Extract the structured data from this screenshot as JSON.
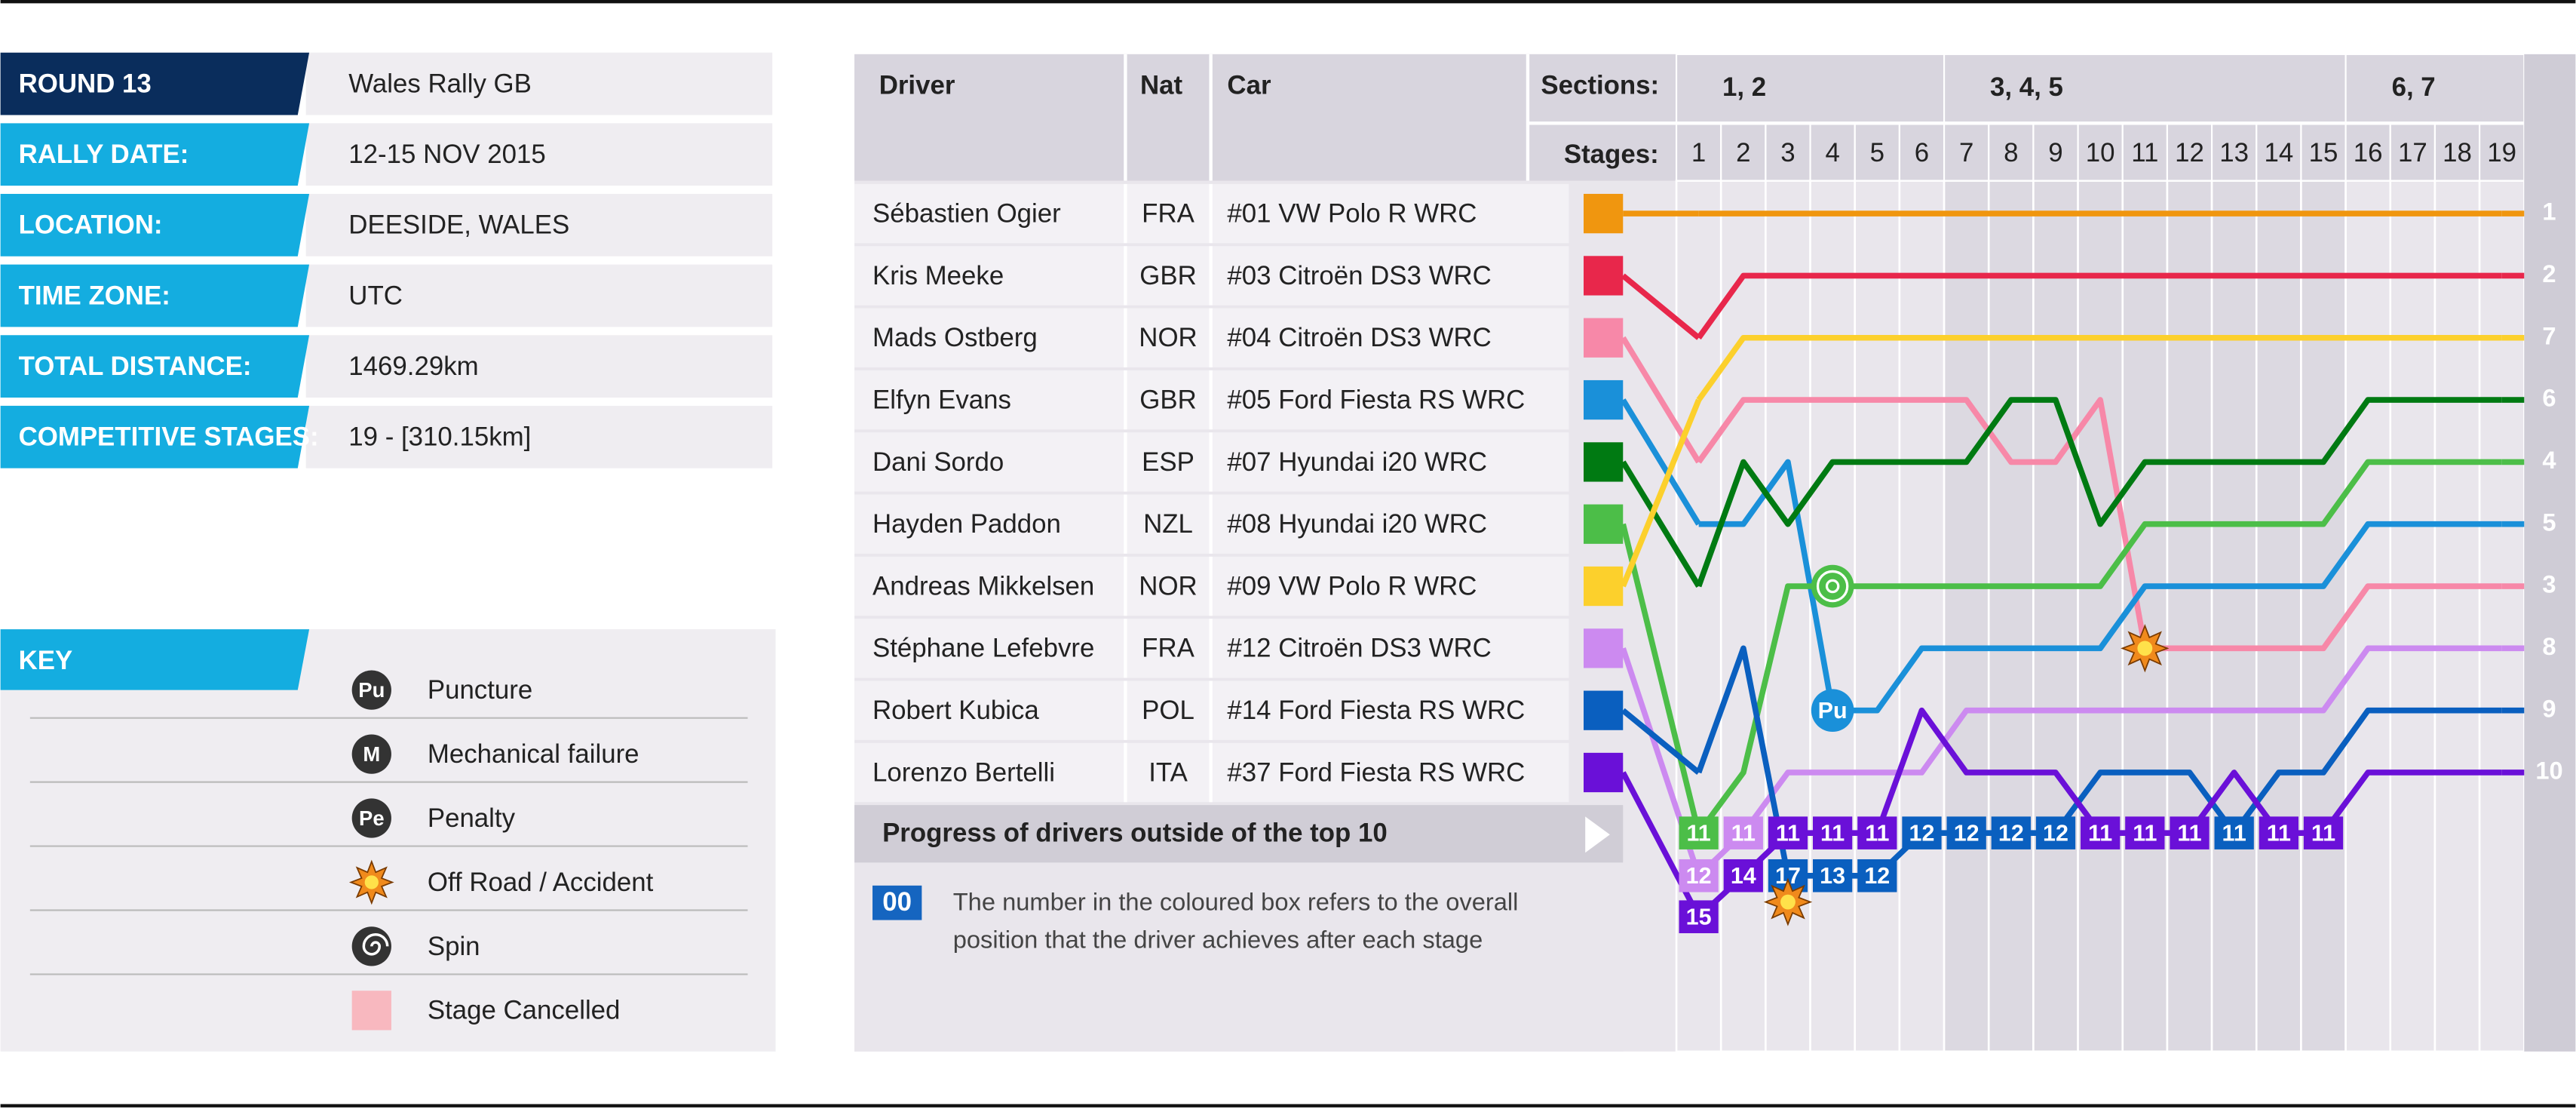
{
  "info": [
    {
      "label": "ROUND 13",
      "value": "Wales Rally GB"
    },
    {
      "label": "RALLY DATE:",
      "value": "12-15 NOV 2015"
    },
    {
      "label": "LOCATION:",
      "value": "DEESIDE, WALES"
    },
    {
      "label": "TIME ZONE:",
      "value": "UTC"
    },
    {
      "label": "TOTAL DISTANCE:",
      "value": "1469.29km"
    },
    {
      "label": "COMPETITIVE STAGES:",
      "value": "19 - [310.15km]"
    }
  ],
  "key": {
    "title": "KEY",
    "items": [
      {
        "icon": "Pu",
        "label": "Puncture"
      },
      {
        "icon": "M",
        "label": "Mechanical failure"
      },
      {
        "icon": "Pe",
        "label": "Penalty"
      },
      {
        "label": "Off Road / Accident"
      },
      {
        "label": "Spin"
      },
      {
        "label": "Stage Cancelled"
      }
    ]
  },
  "table": {
    "headers": [
      "Driver",
      "Nat",
      "Car"
    ],
    "sections_label": "Sections:",
    "stages_label": "Stages:",
    "sections": [
      "1, 2",
      "3, 4, 5",
      "6, 7"
    ]
  },
  "chart_data": {
    "type": "bump",
    "stages": [
      1,
      2,
      3,
      4,
      5,
      6,
      7,
      8,
      9,
      10,
      11,
      12,
      13,
      14,
      15,
      16,
      17,
      18,
      19
    ],
    "series": [
      {
        "name": "Sébastien Ogier",
        "nat": "FRA",
        "car": "#01 VW Polo R WRC",
        "color": "#f0960f",
        "values": [
          1,
          1,
          1,
          1,
          1,
          1,
          1,
          1,
          1,
          1,
          1,
          1,
          1,
          1,
          1,
          1,
          1,
          1,
          1
        ]
      },
      {
        "name": "Kris Meeke",
        "nat": "GBR",
        "car": "#03 Citroën DS3 WRC",
        "color": "#e8274b",
        "values": [
          3,
          2,
          2,
          2,
          2,
          2,
          2,
          2,
          2,
          2,
          2,
          2,
          2,
          2,
          2,
          2,
          2,
          2,
          2
        ]
      },
      {
        "name": "Mads Ostberg",
        "nat": "NOR",
        "car": "#04 Citroën DS3 WRC",
        "color": "#f788a8",
        "values": [
          5,
          4,
          4,
          4,
          4,
          4,
          4,
          5,
          5,
          4,
          8,
          8,
          8,
          8,
          8,
          7,
          7,
          7,
          7
        ],
        "incident": {
          "stage": 11,
          "kind": "Off Road / Accident"
        }
      },
      {
        "name": "Elfyn Evans",
        "nat": "GBR",
        "car": "#05 Ford Fiesta RS WRC",
        "color": "#1a90d9",
        "values": [
          6,
          6,
          5,
          9,
          9,
          8,
          8,
          8,
          8,
          8,
          7,
          7,
          7,
          7,
          7,
          6,
          6,
          6,
          6
        ],
        "incident": {
          "stage": 4,
          "kind": "Puncture"
        }
      },
      {
        "name": "Dani Sordo",
        "nat": "ESP",
        "car": "#07 Hyundai i20 WRC",
        "color": "#007a12",
        "values": [
          7,
          5,
          6,
          5,
          5,
          5,
          5,
          4,
          4,
          6,
          5,
          5,
          5,
          5,
          5,
          4,
          4,
          4,
          4
        ]
      },
      {
        "name": "Hayden Paddon",
        "nat": "NZL",
        "car": "#08 Hyundai i20 WRC",
        "color": "#4cbe48",
        "values": [
          11,
          10,
          7,
          7,
          7,
          7,
          7,
          7,
          7,
          7,
          6,
          6,
          6,
          6,
          6,
          5,
          5,
          5,
          5
        ],
        "incident": {
          "stage": 4,
          "kind": "Spin"
        }
      },
      {
        "name": "Andreas Mikkelsen",
        "nat": "NOR",
        "car": "#09 VW Polo R WRC",
        "color": "#fcd02c",
        "values": [
          4,
          3,
          3,
          3,
          3,
          3,
          3,
          3,
          3,
          3,
          3,
          3,
          3,
          3,
          3,
          3,
          3,
          3,
          3
        ]
      },
      {
        "name": "Stéphane Lefebvre",
        "nat": "FRA",
        "car": "#12 Citroën DS3 WRC",
        "color": "#cc8af0",
        "values": [
          12,
          11,
          10,
          10,
          10,
          10,
          9,
          9,
          9,
          9,
          9,
          9,
          9,
          9,
          9,
          8,
          8,
          8,
          8
        ]
      },
      {
        "name": "Robert Kubica",
        "nat": "POL",
        "car": "#14 Ford Fiesta RS WRC",
        "color": "#0a5fbf",
        "values": [
          10,
          8,
          17,
          13,
          12,
          12,
          12,
          12,
          12,
          10,
          10,
          10,
          11,
          10,
          10,
          9,
          9,
          9,
          9
        ],
        "incident": {
          "stage": 3,
          "kind": "Off Road / Accident"
        }
      },
      {
        "name": "Lorenzo Bertelli",
        "nat": "ITA",
        "car": "#37 Ford Fiesta RS WRC",
        "color": "#6a10d8",
        "values": [
          15,
          14,
          11,
          11,
          11,
          9,
          10,
          10,
          10,
          11,
          11,
          11,
          10,
          11,
          11,
          10,
          10,
          10,
          10
        ]
      }
    ]
  },
  "footer": {
    "title": "Progress of drivers outside of the top 10",
    "box": "00",
    "note": [
      "The number in the coloured box refers to the overall",
      "position that the driver achieves after each stage"
    ]
  }
}
